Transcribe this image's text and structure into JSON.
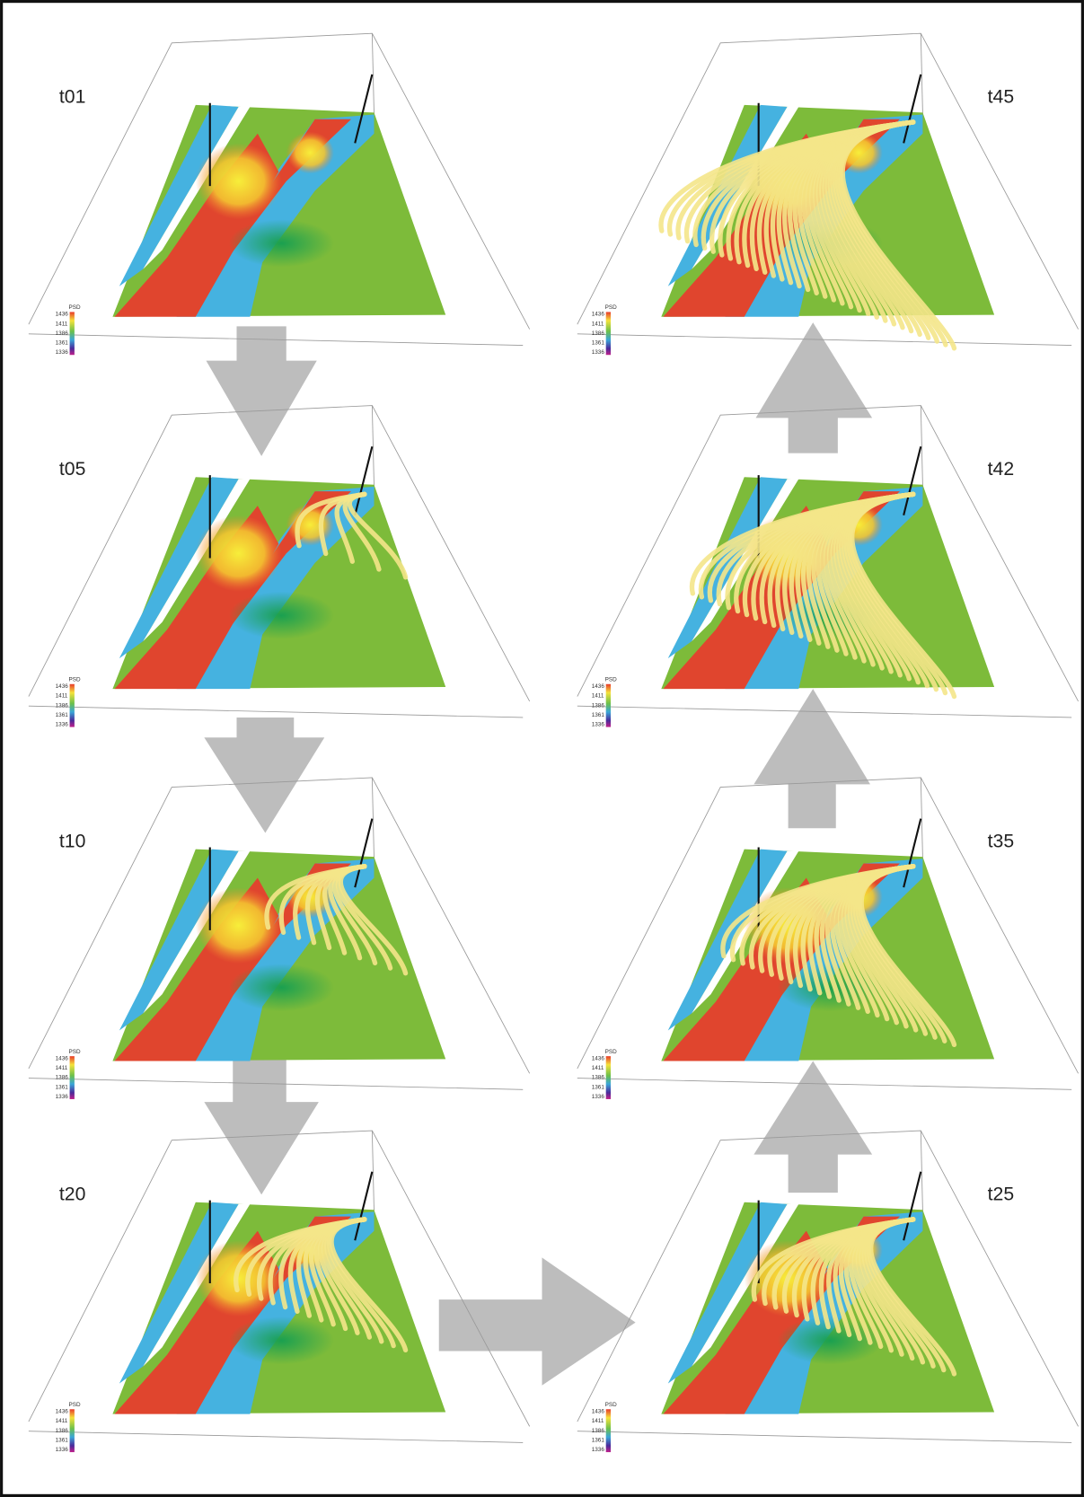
{
  "panels": [
    {
      "label": "t01"
    },
    {
      "label": "t05"
    },
    {
      "label": "t10"
    },
    {
      "label": "t20"
    },
    {
      "label": "t45"
    },
    {
      "label": "t42"
    },
    {
      "label": "t35"
    },
    {
      "label": "t25"
    }
  ],
  "legend": {
    "title": "PSD",
    "ticks": [
      "1436",
      "1411",
      "1386",
      "1361",
      "1336"
    ]
  }
}
